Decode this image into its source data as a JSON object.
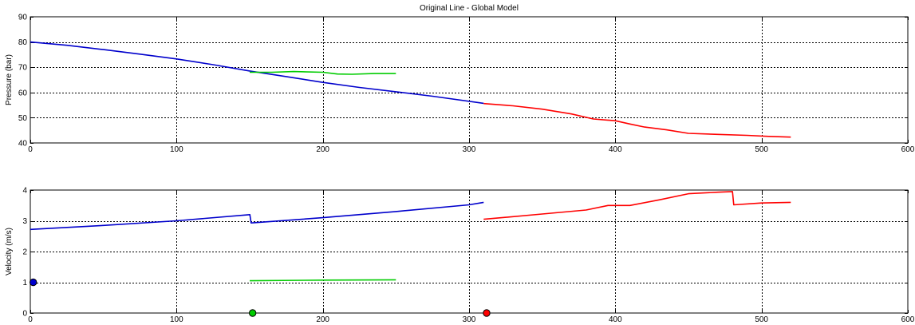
{
  "chart_data": [
    {
      "type": "line",
      "title": "Original Line - Global Model",
      "xlabel": "",
      "ylabel": "Pressure (bar)",
      "xlim": [
        0,
        600
      ],
      "ylim": [
        40,
        90
      ],
      "xticks": [
        "0",
        "100",
        "200",
        "300",
        "400",
        "500",
        "600"
      ],
      "yticks": [
        "40",
        "50",
        "60",
        "70",
        "80",
        "90"
      ],
      "grid": true,
      "series": [
        {
          "color": "#0000cc",
          "x": [
            0,
            25,
            50,
            75,
            100,
            125,
            150,
            175,
            200,
            225,
            250,
            275,
            310
          ],
          "y": [
            80,
            78.7,
            77,
            75.2,
            73.3,
            71,
            68.5,
            66.3,
            64,
            62,
            60.3,
            58.5,
            55.7
          ]
        },
        {
          "color": "#ff0000",
          "x": [
            310,
            330,
            350,
            370,
            385,
            400,
            410,
            420,
            435,
            450,
            470,
            490,
            505,
            520
          ],
          "y": [
            55.6,
            54.7,
            53.4,
            51.5,
            49.5,
            48.8,
            47.5,
            46.3,
            45.2,
            43.8,
            43.4,
            43,
            42.6,
            42.3
          ]
        },
        {
          "color": "#00cc00",
          "x": [
            150,
            165,
            180,
            200,
            210,
            220,
            235,
            250
          ],
          "y": [
            68,
            68,
            68.3,
            68,
            67.3,
            67.2,
            67.5,
            67.5
          ]
        }
      ]
    },
    {
      "type": "line",
      "title": "",
      "xlabel": "",
      "ylabel": "Velocity (m/s)",
      "xlim": [
        0,
        600
      ],
      "ylim": [
        0,
        4
      ],
      "xticks": [
        "0",
        "100",
        "200",
        "300",
        "400",
        "500",
        "600"
      ],
      "yticks": [
        "0",
        "1",
        "2",
        "3",
        "4"
      ],
      "grid": true,
      "series": [
        {
          "color": "#0000cc",
          "x": [
            0,
            50,
            100,
            150,
            150.1,
            151,
            200,
            250,
            300,
            310
          ],
          "y": [
            2.72,
            2.85,
            3.0,
            3.2,
            3.2,
            2.93,
            3.1,
            3.3,
            3.52,
            3.6
          ]
        },
        {
          "color": "#ff0000",
          "x": [
            310,
            350,
            380,
            395,
            410,
            430,
            450,
            470,
            480,
            480.1,
            481,
            500,
            520
          ],
          "y": [
            3.05,
            3.22,
            3.35,
            3.5,
            3.5,
            3.68,
            3.88,
            3.93,
            3.95,
            3.95,
            3.52,
            3.58,
            3.6
          ]
        },
        {
          "color": "#00cc00",
          "x": [
            150,
            200,
            250
          ],
          "y": [
            1.05,
            1.07,
            1.08
          ]
        }
      ],
      "markers": [
        {
          "color": "#0000cc",
          "x": 2,
          "y": 1
        },
        {
          "color": "#00cc00",
          "x": 152,
          "y": 0
        },
        {
          "color": "#ff0000",
          "x": 312,
          "y": 0
        }
      ]
    }
  ]
}
